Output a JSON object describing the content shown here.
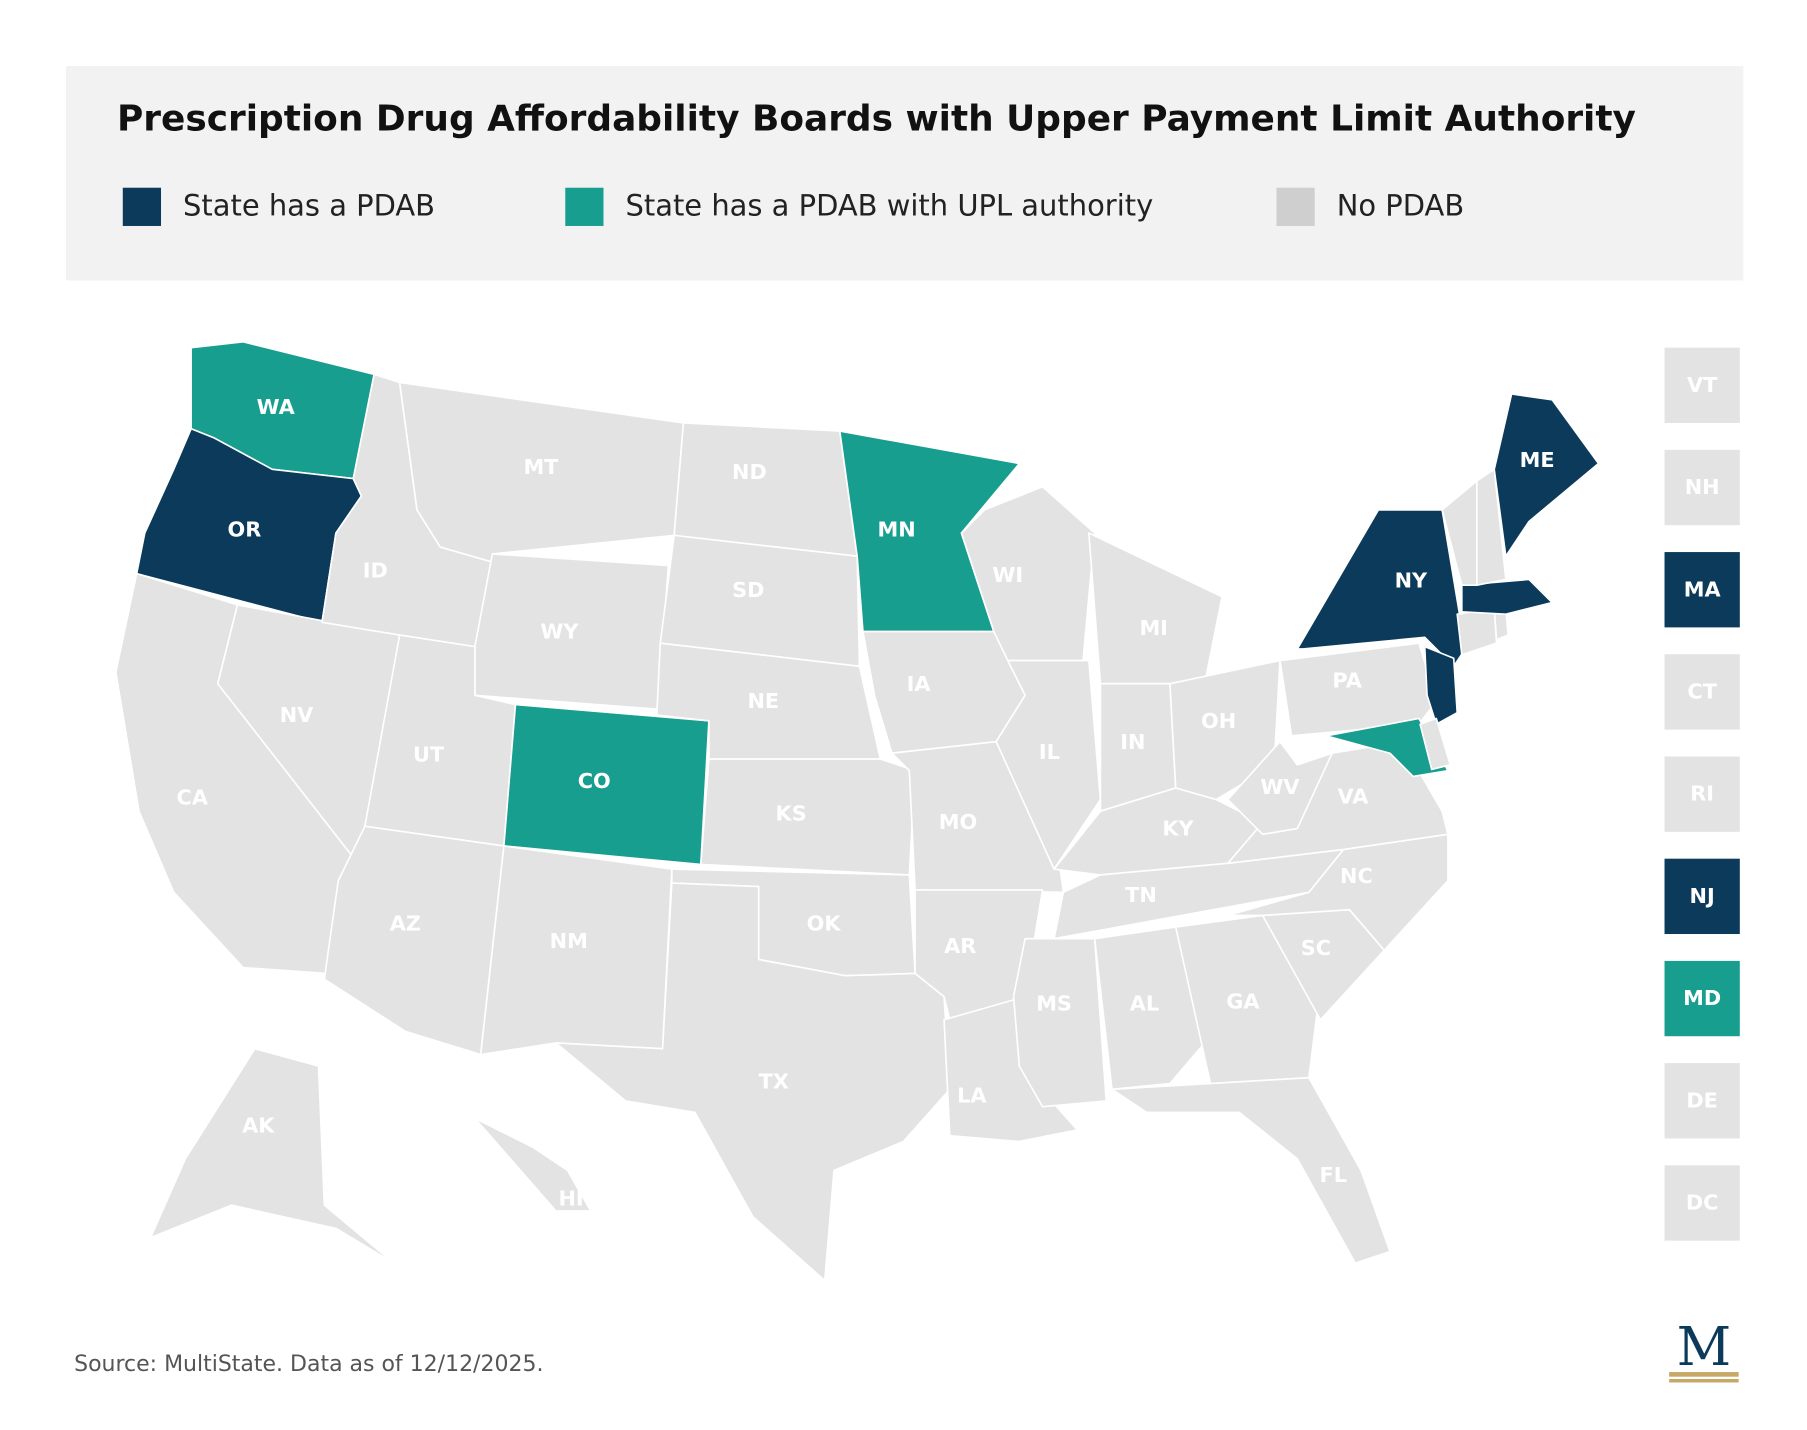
{
  "header": {
    "title": "Prescription Drug Affordability Boards with Upper Payment Limit Authority",
    "legend": [
      {
        "label": "State has a PDAB",
        "color": "#0b3a5a"
      },
      {
        "label": "State has a PDAB with UPL authority",
        "color": "#189e8f"
      },
      {
        "label": "No PDAB",
        "color": "#cfcfcf"
      }
    ]
  },
  "map": {
    "states": [
      {
        "label": "WA",
        "color": "#189e8f"
      },
      {
        "label": "OR",
        "color": "#0b3a5a"
      },
      {
        "label": "CA",
        "color": "#e3e3e3"
      },
      {
        "label": "NV",
        "color": "#e3e3e3"
      },
      {
        "label": "ID",
        "color": "#e3e3e3"
      },
      {
        "label": "MT",
        "color": "#e3e3e3"
      },
      {
        "label": "WY",
        "color": "#e3e3e3"
      },
      {
        "label": "UT",
        "color": "#e3e3e3"
      },
      {
        "label": "AZ",
        "color": "#e3e3e3"
      },
      {
        "label": "CO",
        "color": "#189e8f"
      },
      {
        "label": "NM",
        "color": "#e3e3e3"
      },
      {
        "label": "ND",
        "color": "#e3e3e3"
      },
      {
        "label": "SD",
        "color": "#e3e3e3"
      },
      {
        "label": "NE",
        "color": "#e3e3e3"
      },
      {
        "label": "KS",
        "color": "#e3e3e3"
      },
      {
        "label": "OK",
        "color": "#e3e3e3"
      },
      {
        "label": "TX",
        "color": "#e3e3e3"
      },
      {
        "label": "MN",
        "color": "#189e8f"
      },
      {
        "label": "IA",
        "color": "#e3e3e3"
      },
      {
        "label": "MO",
        "color": "#e3e3e3"
      },
      {
        "label": "AR",
        "color": "#e3e3e3"
      },
      {
        "label": "LA",
        "color": "#e3e3e3"
      },
      {
        "label": "WI",
        "color": "#e3e3e3"
      },
      {
        "label": "IL",
        "color": "#e3e3e3"
      },
      {
        "label": "MI",
        "color": "#e3e3e3"
      },
      {
        "label": "IN",
        "color": "#e3e3e3"
      },
      {
        "label": "OH",
        "color": "#e3e3e3"
      },
      {
        "label": "KY",
        "color": "#e3e3e3"
      },
      {
        "label": "TN",
        "color": "#e3e3e3"
      },
      {
        "label": "MS",
        "color": "#e3e3e3"
      },
      {
        "label": "AL",
        "color": "#e3e3e3"
      },
      {
        "label": "GA",
        "color": "#e3e3e3"
      },
      {
        "label": "FL",
        "color": "#e3e3e3"
      },
      {
        "label": "SC",
        "color": "#e3e3e3"
      },
      {
        "label": "NC",
        "color": "#e3e3e3"
      },
      {
        "label": "VA",
        "color": "#e3e3e3"
      },
      {
        "label": "WV",
        "color": "#e3e3e3"
      },
      {
        "label": "PA",
        "color": "#e3e3e3"
      },
      {
        "label": "NY",
        "color": "#0b3a5a"
      },
      {
        "label": "NJ",
        "color": "#0b3a5a"
      },
      {
        "label": "MD",
        "color": "#189e8f"
      },
      {
        "label": "DE",
        "color": "#e3e3e3"
      },
      {
        "label": "CT",
        "color": "#e3e3e3"
      },
      {
        "label": "RI",
        "color": "#e3e3e3"
      },
      {
        "label": "MA",
        "color": "#0b3a5a"
      },
      {
        "label": "VT",
        "color": "#e3e3e3"
      },
      {
        "label": "NH",
        "color": "#e3e3e3"
      },
      {
        "label": "ME",
        "color": "#0b3a5a"
      },
      {
        "label": "AK",
        "color": "#e3e3e3"
      },
      {
        "label": "HI",
        "color": "#e3e3e3"
      },
      {
        "label": "DC",
        "color": "#e3e3e3"
      }
    ]
  },
  "footer": {
    "source": "Source: MultiState. Data as of 12/12/2025.",
    "logo": "M"
  }
}
